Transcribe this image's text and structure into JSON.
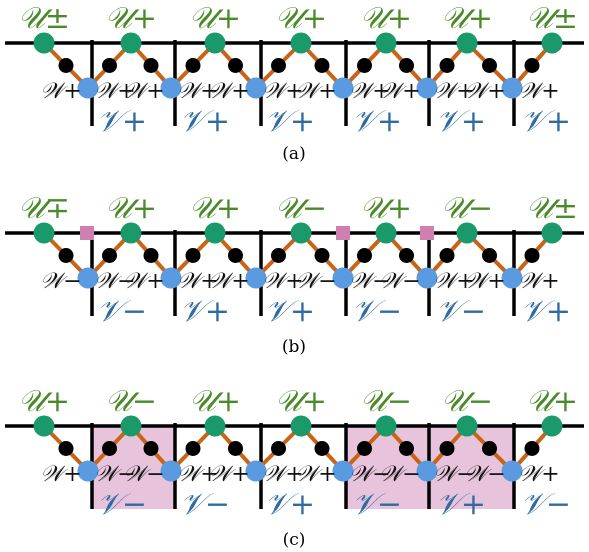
{
  "colors": {
    "u_node": "#1a9a6a",
    "v_node": "#5a9ae0",
    "w_node": "#000000",
    "link": "#c86418",
    "defect": "#d080b0",
    "shade": "#e8c4dc",
    "u_text": "#4a8a2a",
    "v_text": "#2f6aa0"
  },
  "panels": [
    {
      "caption": "(a)",
      "u_labels": [
        "𝒰±",
        "𝒰+",
        "𝒰+",
        "𝒰+",
        "𝒰+",
        "𝒰+",
        "𝒰±"
      ],
      "v_labels": [
        "𝒱+",
        "𝒱+",
        "𝒱+",
        "𝒱+",
        "𝒱+",
        "𝒱+"
      ],
      "w_labels": [
        "𝒲+",
        "𝒲+",
        "𝒲+",
        "𝒲+",
        "𝒲+",
        "𝒲+",
        "𝒲+",
        "𝒲+",
        "𝒲+",
        "𝒲+",
        "𝒲+",
        "𝒲+"
      ],
      "defects": [],
      "shaded": []
    },
    {
      "caption": "(b)",
      "u_labels": [
        "𝒰∓",
        "𝒰+",
        "𝒰+",
        "𝒰−",
        "𝒰+",
        "𝒰−",
        "𝒰±"
      ],
      "v_labels": [
        "𝒱−",
        "𝒱+",
        "𝒱+",
        "𝒱−",
        "𝒱−",
        "𝒱+"
      ],
      "w_labels": [
        "𝒲−",
        "𝒲−",
        "𝒲+",
        "𝒲+",
        "𝒲+",
        "𝒲+",
        "𝒲−",
        "𝒲−",
        "𝒲−",
        "𝒲+",
        "𝒲+",
        "𝒲+"
      ],
      "defects": [
        0,
        3,
        4
      ],
      "shaded": []
    },
    {
      "caption": "(c)",
      "u_labels": [
        "𝒰+",
        "𝒰−",
        "𝒰+",
        "𝒰+",
        "𝒰−",
        "𝒰−",
        "𝒰+"
      ],
      "v_labels": [
        "𝒱−",
        "𝒱−",
        "𝒱+",
        "𝒱−",
        "𝒱+",
        "𝒱−"
      ],
      "w_labels": [
        "𝒲+",
        "𝒲−",
        "𝒲−",
        "𝒲+",
        "𝒲+",
        "𝒲+",
        "𝒲+",
        "𝒲−",
        "𝒲−",
        "𝒲−",
        "𝒲−",
        "𝒲+"
      ],
      "defects": [],
      "shaded": [
        1,
        4,
        5
      ]
    }
  ]
}
